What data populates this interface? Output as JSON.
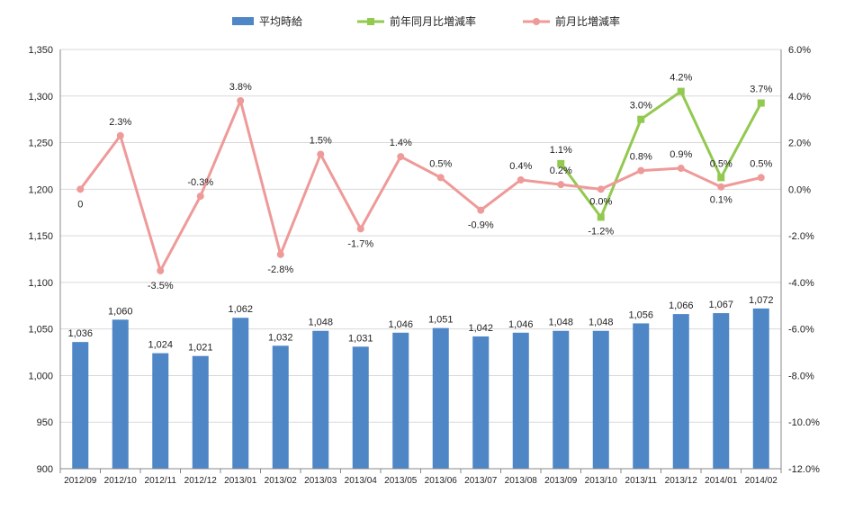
{
  "chart_data": {
    "type": "bar",
    "categories": [
      "2012/09",
      "2012/10",
      "2012/11",
      "2012/12",
      "2013/01",
      "2013/02",
      "2013/03",
      "2013/04",
      "2013/05",
      "2013/06",
      "2013/07",
      "2013/08",
      "2013/09",
      "2013/10",
      "2013/11",
      "2013/12",
      "2014/01",
      "2014/02"
    ],
    "series": [
      {
        "name": "平均時給",
        "type": "bar",
        "axis": "left",
        "color": "#4F86C6",
        "values": [
          1036,
          1060,
          1024,
          1021,
          1062,
          1032,
          1048,
          1031,
          1046,
          1051,
          1042,
          1046,
          1048,
          1048,
          1056,
          1066,
          1067,
          1072
        ],
        "labels": [
          "1,036",
          "1,060",
          "1,024",
          "1,021",
          "1,062",
          "1,032",
          "1,048",
          "1,031",
          "1,046",
          "1,051",
          "1,042",
          "1,046",
          "1,048",
          "1,048",
          "1,056",
          "1,066",
          "1,067",
          "1,072"
        ]
      },
      {
        "name": "前年同月比増減率",
        "type": "line",
        "axis": "right",
        "color": "#92C94F",
        "marker": "square",
        "values": [
          null,
          null,
          null,
          null,
          null,
          null,
          null,
          null,
          null,
          null,
          null,
          null,
          1.1,
          -1.2,
          3.0,
          4.2,
          0.5,
          3.7
        ],
        "labels": [
          "",
          "",
          "",
          "",
          "",
          "",
          "",
          "",
          "",
          "",
          "",
          "",
          "1.1%",
          "-1.2%",
          "3.0%",
          "4.2%",
          "0.5%",
          "3.7%"
        ]
      },
      {
        "name": "前月比増減率",
        "type": "line",
        "axis": "right",
        "color": "#EE9A99",
        "marker": "circle",
        "values": [
          0,
          2.3,
          -3.5,
          -0.3,
          3.8,
          -2.8,
          1.5,
          -1.7,
          1.4,
          0.5,
          -0.9,
          0.4,
          0.2,
          0.0,
          0.8,
          0.9,
          0.1,
          0.5
        ],
        "labels": [
          "0",
          "2.3%",
          "-3.5%",
          "-0.3%",
          "3.8%",
          "-2.8%",
          "1.5%",
          "-1.7%",
          "1.4%",
          "0.5%",
          "-0.9%",
          "0.4%",
          "0.2%",
          "0.0%",
          "0.8%",
          "0.9%",
          "0.1%",
          "0.5%"
        ]
      }
    ],
    "y_left": {
      "min": 900,
      "max": 1350,
      "ticks": [
        900,
        950,
        1000,
        1050,
        1100,
        1150,
        1200,
        1250,
        1300,
        1350
      ],
      "tick_labels": [
        "900",
        "950",
        "1,000",
        "1,050",
        "1,100",
        "1,150",
        "1,200",
        "1,250",
        "1,300",
        "1,350"
      ]
    },
    "y_right": {
      "min": -12,
      "max": 6,
      "ticks": [
        -12,
        -10,
        -8,
        -6,
        -4,
        -2,
        0,
        2,
        4,
        6
      ],
      "tick_labels": [
        "-12.0%",
        "-10.0%",
        "-8.0%",
        "-6.0%",
        "-4.0%",
        "-2.0%",
        "0.0%",
        "2.0%",
        "4.0%",
        "6.0%"
      ]
    },
    "grid": true,
    "legend": "top",
    "title": "",
    "xlabel": "",
    "ylabel": ""
  }
}
